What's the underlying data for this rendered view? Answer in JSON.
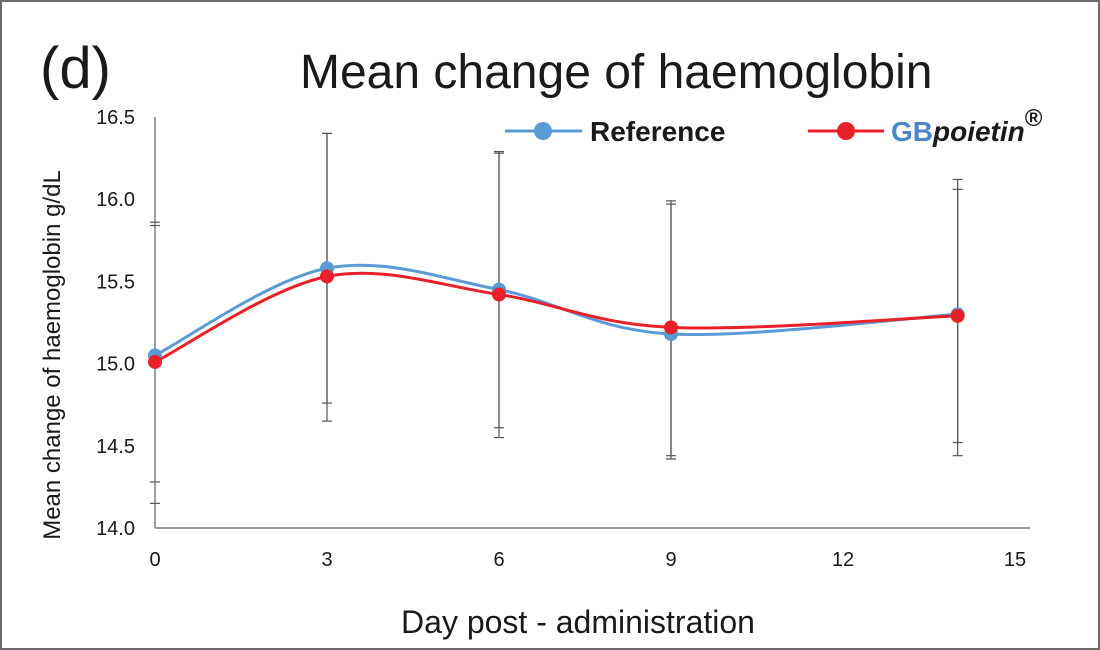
{
  "panel_label": "(d)",
  "chart_data": {
    "type": "line",
    "title": "Mean change of haemoglobin",
    "xlabel": "Day post - administration",
    "ylabel": "Mean change of haemoglobin g/dL",
    "xlim": [
      0,
      15
    ],
    "ylim": [
      14.0,
      16.5
    ],
    "xticks": [
      0,
      3,
      6,
      9,
      12,
      15
    ],
    "yticks": [
      "14.0",
      "14.5",
      "15.0",
      "15.5",
      "16.0",
      "16.5"
    ],
    "smooth": true,
    "grid": false,
    "legend_position": "top-right",
    "series": [
      {
        "name": "Reference",
        "color": "#5b9bd5",
        "x": [
          0,
          3,
          6,
          9,
          14
        ],
        "y": [
          15.05,
          15.58,
          15.45,
          15.18,
          15.3
        ],
        "err_low": [
          14.28,
          14.76,
          14.61,
          14.42,
          14.52
        ],
        "err_high": [
          15.84,
          16.4,
          16.29,
          15.99,
          16.12
        ]
      },
      {
        "name_prefix": "GB",
        "name_suffix": "poietin",
        "name_mark": "®",
        "color": "#e8202a",
        "x": [
          0,
          3,
          6,
          9,
          14
        ],
        "y": [
          15.01,
          15.53,
          15.42,
          15.22,
          15.29
        ],
        "err_low": [
          14.15,
          14.65,
          14.55,
          14.44,
          14.44
        ],
        "err_high": [
          15.86,
          16.4,
          16.28,
          15.97,
          16.06
        ]
      }
    ]
  }
}
